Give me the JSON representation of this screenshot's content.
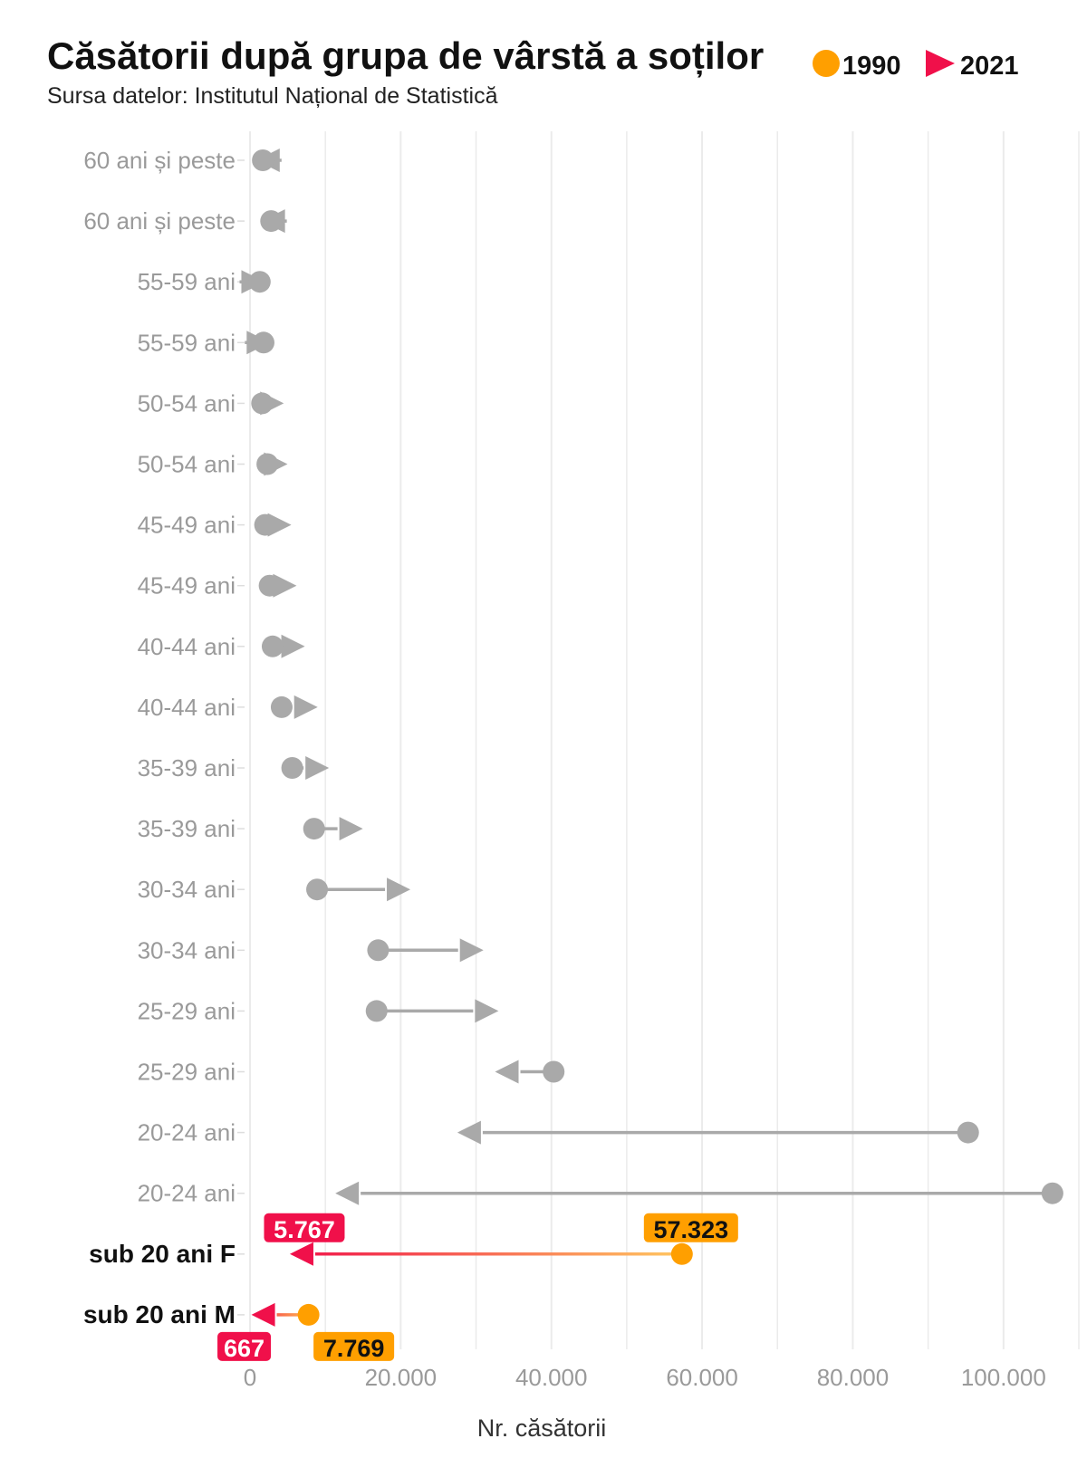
{
  "chart_data": {
    "type": "dumbbell",
    "title": "Căsătorii după grupa de vârstă a soților",
    "subtitle": "Sursa datelor: Institutul Național de Statistică",
    "xlabel": "Nr. căsătorii",
    "ylabel": "",
    "xlim": [
      0,
      110000
    ],
    "xticks": [
      0,
      20000,
      40000,
      60000,
      80000,
      100000
    ],
    "xtick_labels": [
      "0",
      "20.000",
      "40.000",
      "60.000",
      "80.000",
      "100.000"
    ],
    "grid": "vertical",
    "legend": {
      "placement": "top-right",
      "items": [
        {
          "name": "1990",
          "marker": "circle",
          "color": "#FF9F00"
        },
        {
          "name": "2021",
          "marker": "triangle",
          "color": "#F0104A"
        }
      ]
    },
    "colors": {
      "1990": "#FF9F00",
      "2021": "#F0104A",
      "muted": "#a9a9a9"
    },
    "categories": [
      "60 ani și peste",
      "60 ani și peste",
      "55-59 ani",
      "55-59 ani",
      "50-54 ani",
      "50-54 ani",
      "45-49 ani",
      "45-49 ani",
      "40-44 ani",
      "40-44 ani",
      "35-39 ani",
      "35-39 ani",
      "30-34 ani",
      "30-34 ani",
      "25-29 ani",
      "25-29 ani",
      "20-24 ani",
      "20-24 ani",
      "sub 20 ani F",
      "sub 20 ani M"
    ],
    "highlighted": [
      false,
      false,
      false,
      false,
      false,
      false,
      false,
      false,
      false,
      false,
      false,
      false,
      false,
      false,
      false,
      false,
      false,
      false,
      true,
      true
    ],
    "series": [
      {
        "name": "1990",
        "values": [
          1700,
          2800,
          1300,
          1800,
          1600,
          2300,
          2000,
          2600,
          3000,
          4200,
          5600,
          8500,
          8900,
          17000,
          16800,
          40300,
          95300,
          106500,
          57323,
          7769
        ]
      },
      {
        "name": "2021",
        "values": [
          1300,
          2000,
          1500,
          2200,
          4000,
          4500,
          5000,
          5700,
          6800,
          8500,
          10000,
          14500,
          20800,
          30500,
          32500,
          33000,
          28000,
          11800,
          5767,
          667
        ]
      }
    ],
    "data_labels": {
      "sub 20 ani F": {
        "1990": "57.323",
        "2021": "5.767"
      },
      "sub 20 ani M": {
        "1990": "7.769",
        "2021": "667"
      }
    }
  }
}
